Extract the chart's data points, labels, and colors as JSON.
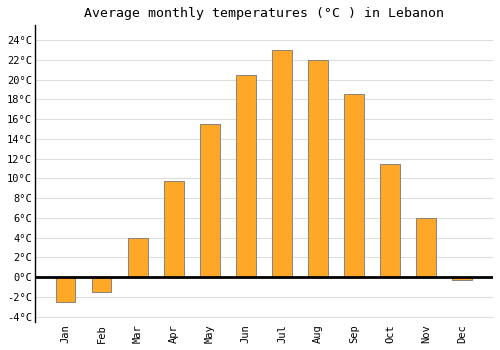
{
  "months": [
    "Jan",
    "Feb",
    "Mar",
    "Apr",
    "May",
    "Jun",
    "Jul",
    "Aug",
    "Sep",
    "Oct",
    "Nov",
    "Dec"
  ],
  "temperatures": [
    -2.5,
    -1.5,
    4.0,
    9.7,
    15.5,
    20.5,
    23.0,
    22.0,
    18.5,
    11.5,
    6.0,
    -0.3
  ],
  "bar_color": "#FFA726",
  "bar_edge_color": "#777777",
  "title": "Average monthly temperatures (°C ) in Lebanon",
  "ylim": [
    -4.5,
    25.5
  ],
  "yticks": [
    -4,
    -2,
    0,
    2,
    4,
    6,
    8,
    10,
    12,
    14,
    16,
    18,
    20,
    22,
    24
  ],
  "ytick_labels": [
    "-4°C",
    "-2°C",
    "0°C",
    "2°C",
    "4°C",
    "6°C",
    "8°C",
    "10°C",
    "12°C",
    "14°C",
    "16°C",
    "18°C",
    "20°C",
    "22°C",
    "24°C"
  ],
  "background_color": "#ffffff",
  "grid_color": "#dddddd",
  "title_fontsize": 9.5,
  "tick_fontsize": 7.5,
  "bar_width": 0.55
}
